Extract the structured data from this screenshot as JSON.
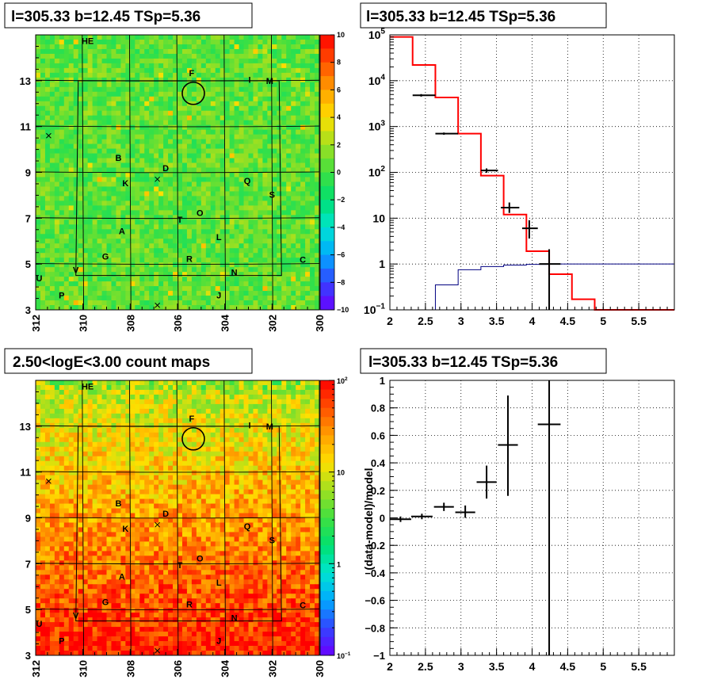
{
  "chart_data": [
    {
      "type": "heatmap",
      "title": "l=305.33 b=12.45 TSp=5.36",
      "x_range": [
        312,
        300
      ],
      "y_range": [
        3,
        15
      ],
      "x_ticks": [
        "312",
        "310",
        "308",
        "306",
        "304",
        "302",
        "300"
      ],
      "y_ticks": [
        "3",
        "5",
        "7",
        "9",
        "11",
        "13"
      ],
      "colorbar_range": [
        -10,
        10
      ],
      "colorbar_ticks": [
        "10",
        "8",
        "6",
        "4",
        "2",
        "0",
        "−2",
        "−4",
        "−6",
        "−8",
        "−10"
      ],
      "colorbar_scale": "linear",
      "colors": [
        "#6a00ff",
        "#3344ff",
        "#00aaff",
        "#00e5d0",
        "#00e070",
        "#40e040",
        "#a0e020",
        "#ffe000",
        "#ffa000",
        "#ff5000",
        "#ff0000"
      ],
      "background_color": "#22dd55",
      "source_labels": [
        {
          "text": "HE",
          "x": 309.8,
          "y": 14.6
        },
        {
          "text": "F",
          "x": 305.4,
          "y": 13.2
        },
        {
          "text": "I",
          "x": 302.95,
          "y": 12.9
        },
        {
          "text": "M",
          "x": 302.1,
          "y": 12.85
        },
        {
          "text": "B",
          "x": 308.5,
          "y": 9.5
        },
        {
          "text": "D",
          "x": 306.5,
          "y": 9.05
        },
        {
          "text": "K",
          "x": 308.2,
          "y": 8.4
        },
        {
          "text": "Q",
          "x": 303.05,
          "y": 8.5
        },
        {
          "text": "S",
          "x": 302.0,
          "y": 7.9
        },
        {
          "text": "O",
          "x": 305.05,
          "y": 7.1
        },
        {
          "text": "T",
          "x": 305.9,
          "y": 6.8
        },
        {
          "text": "A",
          "x": 308.35,
          "y": 6.3
        },
        {
          "text": "L",
          "x": 304.25,
          "y": 6.05
        },
        {
          "text": "G",
          "x": 309.05,
          "y": 5.2
        },
        {
          "text": "R",
          "x": 305.5,
          "y": 5.1
        },
        {
          "text": "C",
          "x": 300.7,
          "y": 5.05
        },
        {
          "text": "V",
          "x": 310.3,
          "y": 4.6
        },
        {
          "text": "N",
          "x": 303.6,
          "y": 4.5
        },
        {
          "text": "U",
          "x": 311.85,
          "y": 4.25
        },
        {
          "text": "P",
          "x": 310.9,
          "y": 3.5
        },
        {
          "text": "J",
          "x": 304.25,
          "y": 3.5
        }
      ],
      "crosses": [
        {
          "x": 311.45,
          "y": 10.6
        },
        {
          "x": 306.85,
          "y": 8.7
        },
        {
          "x": 306.85,
          "y": 3.2
        }
      ],
      "source_circle": {
        "x": 305.33,
        "y": 12.45
      }
    },
    {
      "type": "line",
      "title": "l=305.33 b=12.45 TSp=5.36",
      "x_range": [
        2,
        6
      ],
      "y_range": [
        0.1,
        100000
      ],
      "y_scale": "log",
      "x_ticks": [
        "2",
        "2.5",
        "3",
        "3.5",
        "4",
        "4.5",
        "5",
        "5.5"
      ],
      "y_ticks": [
        {
          "base": "10",
          "exp": "5"
        },
        {
          "base": "10",
          "exp": "4"
        },
        {
          "base": "10",
          "exp": "3"
        },
        {
          "base": "10",
          "exp": "2"
        },
        {
          "base": "10",
          "exp": ""
        },
        {
          "base": "1",
          "exp": ""
        },
        {
          "base": "10",
          "exp": "−1"
        }
      ],
      "grid": true,
      "edges": [
        2.0,
        2.32,
        2.64,
        2.96,
        3.28,
        3.6,
        3.92,
        4.24,
        4.56,
        4.88,
        5.2,
        5.52,
        5.84,
        6.0
      ],
      "series": [
        {
          "color": "#ff0000",
          "values": [
            90000,
            22000,
            4300,
            700,
            85,
            12,
            1.9,
            0.6,
            0.17,
            0.1,
            0.1,
            0.1,
            0.1
          ]
        },
        {
          "color": "#000080",
          "values": [
            0.1,
            0.1,
            0.35,
            0.75,
            0.88,
            0.95,
            0.98,
            1.0,
            1.0,
            1.0,
            1.0,
            1.0,
            1.0
          ]
        }
      ],
      "data_points": [
        {
          "x": 2.44,
          "xl": 2.32,
          "xh": 2.64,
          "y": 4800,
          "yl": 4500,
          "yh": 5100
        },
        {
          "x": 2.76,
          "xl": 2.64,
          "xh": 2.96,
          "y": 700,
          "yl": 660,
          "yh": 740
        },
        {
          "x": 3.36,
          "xl": 3.28,
          "xh": 3.52,
          "y": 110,
          "yl": 98,
          "yh": 122
        },
        {
          "x": 3.68,
          "xl": 3.56,
          "xh": 3.82,
          "y": 17,
          "yl": 13,
          "yh": 22
        },
        {
          "x": 3.96,
          "xl": 3.86,
          "xh": 4.08,
          "y": 6,
          "yl": 3.6,
          "yh": 9
        },
        {
          "x": 4.24,
          "xl": 4.1,
          "xh": 4.4,
          "y": 1.0,
          "yl": 0.1,
          "yh": 2.1
        }
      ]
    },
    {
      "type": "heatmap",
      "title": "2.50<logE<3.00 count maps",
      "x_range": [
        312,
        300
      ],
      "y_range": [
        3,
        15
      ],
      "x_ticks": [
        "312",
        "310",
        "308",
        "306",
        "304",
        "302",
        "300"
      ],
      "y_ticks": [
        "3",
        "5",
        "7",
        "9",
        "11",
        "13"
      ],
      "colorbar_range": [
        0.1,
        100
      ],
      "colorbar_scale": "log",
      "colorbar_ticks": [
        {
          "base": "10",
          "exp": "2"
        },
        {
          "base": "10",
          "exp": ""
        },
        {
          "base": "1",
          "exp": ""
        },
        {
          "base": "10",
          "exp": "−1"
        }
      ],
      "colors": [
        "#6a00ff",
        "#3344ff",
        "#00aaff",
        "#00e5d0",
        "#00e070",
        "#40e040",
        "#a0e020",
        "#ffe000",
        "#ffa000",
        "#ff5000",
        "#ff0000"
      ],
      "background_color": "#ffdd00",
      "source_labels": [
        {
          "text": "HE",
          "x": 309.8,
          "y": 14.6
        },
        {
          "text": "F",
          "x": 305.4,
          "y": 13.2
        },
        {
          "text": "I",
          "x": 302.95,
          "y": 12.9
        },
        {
          "text": "M",
          "x": 302.1,
          "y": 12.85
        },
        {
          "text": "B",
          "x": 308.5,
          "y": 9.5
        },
        {
          "text": "D",
          "x": 306.5,
          "y": 9.05
        },
        {
          "text": "K",
          "x": 308.2,
          "y": 8.4
        },
        {
          "text": "Q",
          "x": 303.05,
          "y": 8.5
        },
        {
          "text": "S",
          "x": 302.0,
          "y": 7.9
        },
        {
          "text": "O",
          "x": 305.05,
          "y": 7.1
        },
        {
          "text": "T",
          "x": 305.9,
          "y": 6.8
        },
        {
          "text": "A",
          "x": 308.35,
          "y": 6.3
        },
        {
          "text": "L",
          "x": 304.25,
          "y": 6.05
        },
        {
          "text": "G",
          "x": 309.05,
          "y": 5.2
        },
        {
          "text": "R",
          "x": 305.5,
          "y": 5.1
        },
        {
          "text": "C",
          "x": 300.7,
          "y": 5.05
        },
        {
          "text": "V",
          "x": 310.3,
          "y": 4.6
        },
        {
          "text": "N",
          "x": 303.6,
          "y": 4.5
        },
        {
          "text": "U",
          "x": 311.85,
          "y": 4.25
        },
        {
          "text": "P",
          "x": 310.9,
          "y": 3.5
        },
        {
          "text": "J",
          "x": 304.25,
          "y": 3.5
        }
      ],
      "crosses": [
        {
          "x": 311.45,
          "y": 10.6
        },
        {
          "x": 306.85,
          "y": 8.7
        },
        {
          "x": 306.85,
          "y": 3.2
        }
      ],
      "source_circle": {
        "x": 305.33,
        "y": 12.45
      }
    },
    {
      "type": "scatter",
      "title": "l=305.33 b=12.45 TSp=5.36",
      "ylabel": "(data-model)/model",
      "x_range": [
        2,
        6
      ],
      "y_range": [
        -1,
        1
      ],
      "x_ticks": [
        "2",
        "2.5",
        "3",
        "3.5",
        "4",
        "4.5",
        "5",
        "5.5"
      ],
      "y_ticks": [
        "1",
        "0.8",
        "0.6",
        "0.4",
        "0.2",
        "0",
        "−0.2",
        "−0.4",
        "−0.6",
        "−0.8",
        "−1"
      ],
      "grid": true,
      "points": [
        {
          "x": 2.15,
          "xl": 2.0,
          "xh": 2.3,
          "y": -0.01,
          "yl": -0.03,
          "yh": 0.01
        },
        {
          "x": 2.45,
          "xl": 2.3,
          "xh": 2.6,
          "y": 0.01,
          "yl": -0.01,
          "yh": 0.03
        },
        {
          "x": 2.76,
          "xl": 2.62,
          "xh": 2.9,
          "y": 0.08,
          "yl": 0.05,
          "yh": 0.11
        },
        {
          "x": 3.06,
          "xl": 2.92,
          "xh": 3.2,
          "y": 0.04,
          "yl": 0.0,
          "yh": 0.09
        },
        {
          "x": 3.36,
          "xl": 3.22,
          "xh": 3.5,
          "y": 0.26,
          "yl": 0.14,
          "yh": 0.38
        },
        {
          "x": 3.66,
          "xl": 3.52,
          "xh": 3.8,
          "y": 0.53,
          "yl": 0.16,
          "yh": 0.89
        },
        {
          "x": 4.24,
          "xl": 4.08,
          "xh": 4.4,
          "y": 0.68,
          "yl": -1,
          "yh": 1
        }
      ]
    }
  ]
}
